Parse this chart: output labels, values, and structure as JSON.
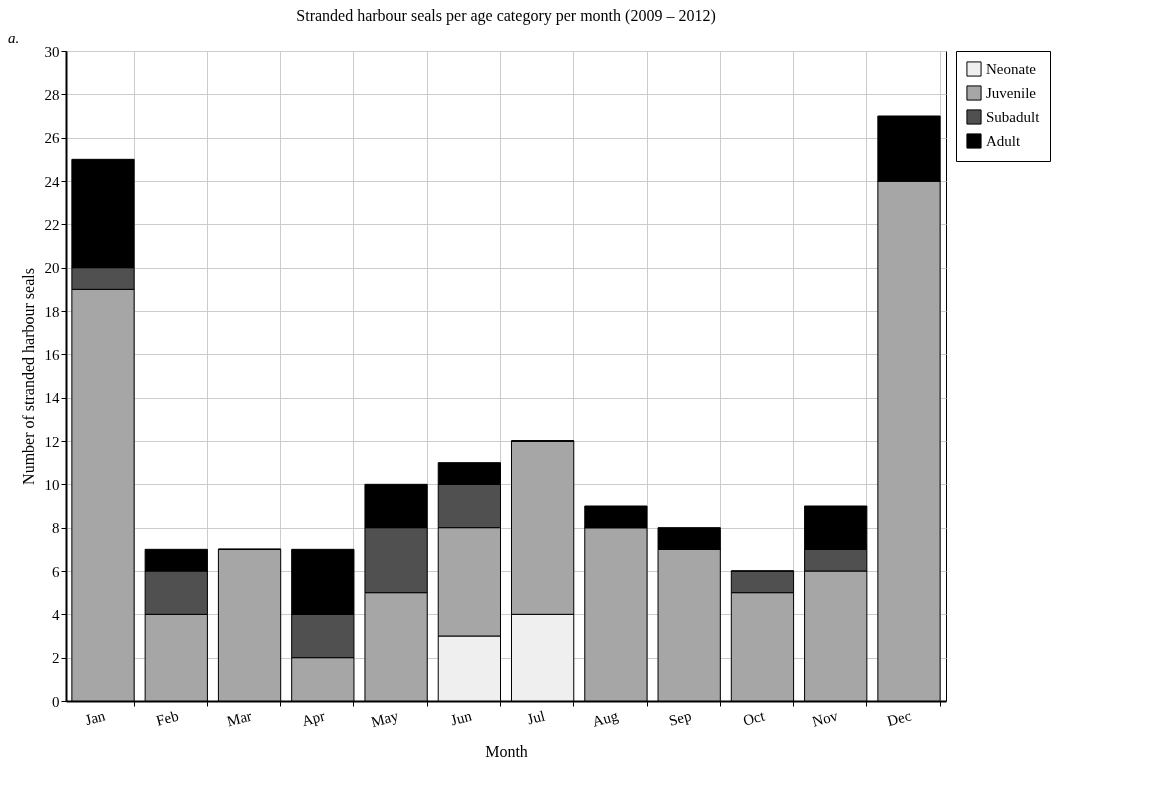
{
  "chart_data": {
    "type": "bar",
    "title": "Stranded harbour seals per age category per month (2009 – 2012)",
    "annotations": [
      "a."
    ],
    "xlabel": "Month",
    "ylabel": "Number of stranded harbour seals",
    "categories": [
      "Jan",
      "Feb",
      "Mar",
      "Apr",
      "May",
      "Jun",
      "Jul",
      "Aug",
      "Sep",
      "Oct",
      "Nov",
      "Dec"
    ],
    "stacked": true,
    "series": [
      {
        "name": "Neonate",
        "color": "#efefef",
        "values": [
          0,
          0,
          0,
          0,
          0,
          3,
          4,
          0,
          0,
          0,
          0,
          0
        ]
      },
      {
        "name": "Juvenile",
        "color": "#a6a6a6",
        "values": [
          19,
          4,
          7,
          2,
          5,
          5,
          8,
          8,
          7,
          5,
          6,
          24
        ]
      },
      {
        "name": "Subadult",
        "color": "#505050",
        "values": [
          1,
          2,
          0,
          2,
          3,
          2,
          0,
          0,
          0,
          1,
          1,
          0
        ]
      },
      {
        "name": "Adult",
        "color": "#000000",
        "values": [
          5,
          1,
          0,
          3,
          2,
          1,
          0,
          1,
          1,
          0,
          2,
          3
        ]
      }
    ],
    "ylim": [
      0,
      30
    ],
    "yticks": [
      0,
      2,
      4,
      6,
      8,
      10,
      12,
      14,
      16,
      18,
      20,
      22,
      24,
      26,
      28,
      30
    ],
    "grid": true,
    "legend": "top right"
  }
}
